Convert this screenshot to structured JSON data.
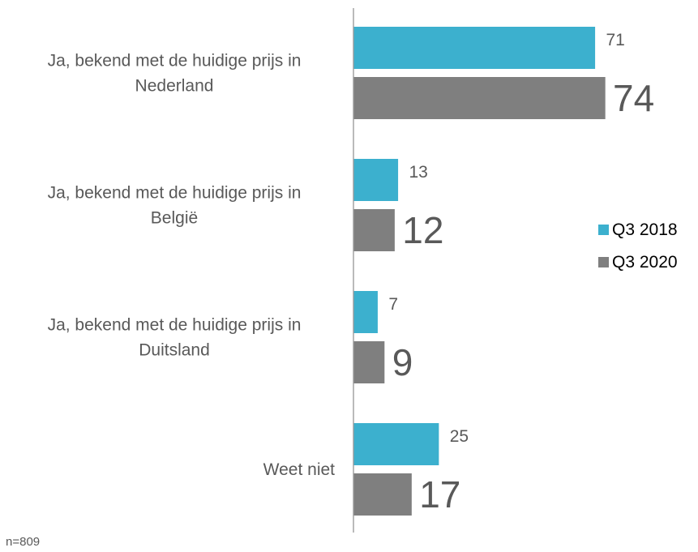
{
  "chart_data": {
    "type": "bar",
    "orientation": "horizontal",
    "categories": [
      [
        "Ja, bekend met de huidige prijs in",
        "Nederland"
      ],
      [
        "Ja, bekend met de huidige prijs in",
        "België"
      ],
      [
        "Ja, bekend met de huidige prijs in",
        "Duitsland"
      ],
      [
        "Weet niet"
      ]
    ],
    "series": [
      {
        "name": "Q3 2018",
        "color": "#3cb0ce",
        "values": [
          71,
          13,
          7,
          25
        ]
      },
      {
        "name": "Q3 2020",
        "color": "#7f7f7f",
        "values": [
          74,
          12,
          9,
          17
        ]
      }
    ],
    "xlim": [
      0,
      100
    ],
    "grid": false,
    "legend": "right"
  },
  "footnote": "n=809"
}
